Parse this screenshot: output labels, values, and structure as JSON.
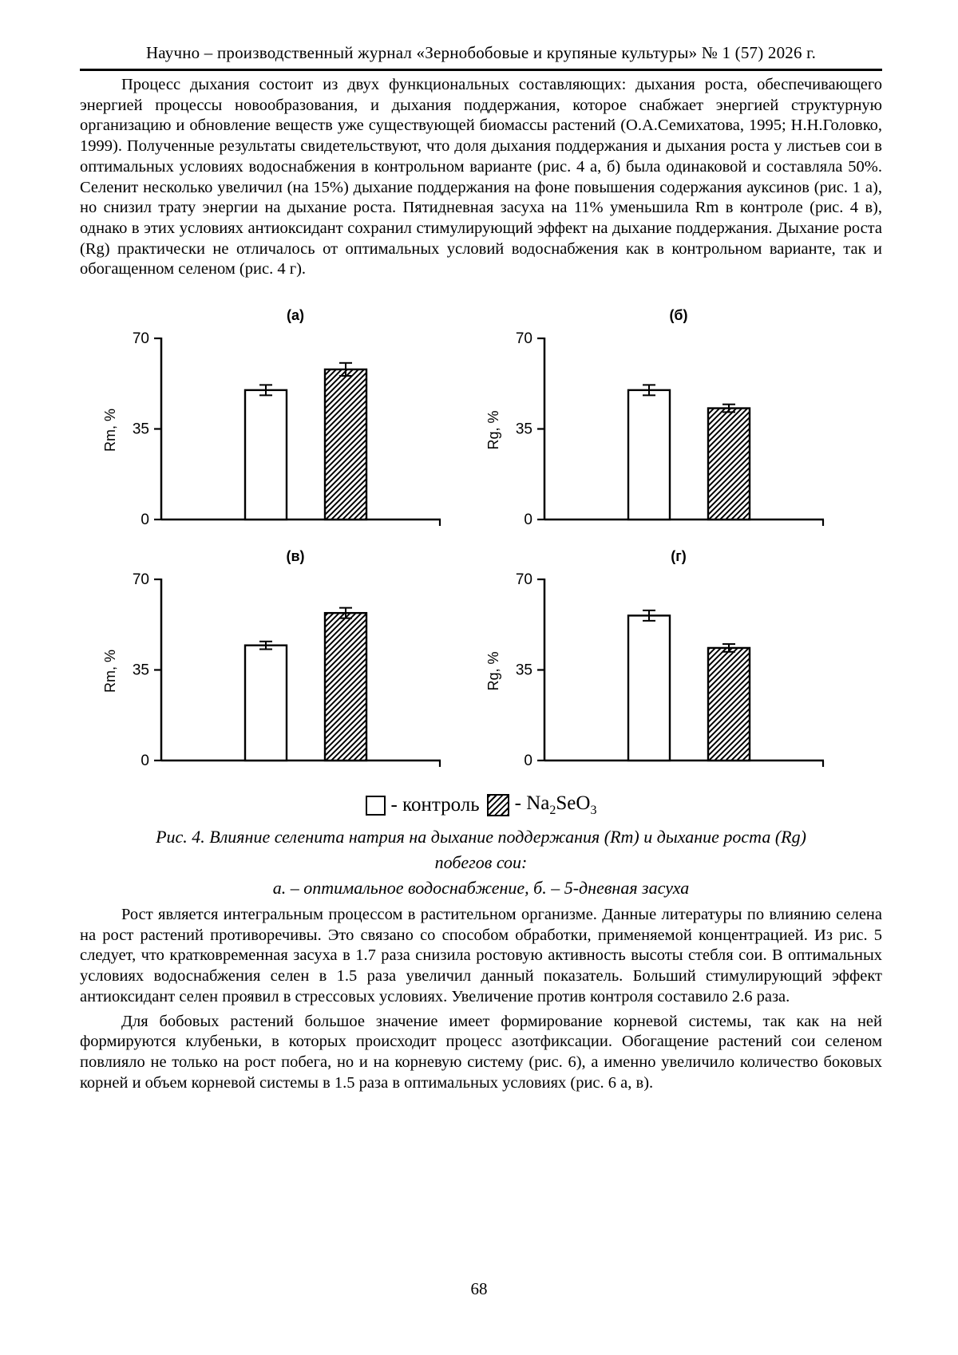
{
  "header": {
    "journal_line": "Научно – производственный журнал «Зернобобовые и крупяные культуры» № 1 (57) 2026 г."
  },
  "paragraphs": {
    "p1": "Процесс дыхания состоит из двух функциональных составляющих: дыхания роста, обеспечивающего энергией процессы новообразования, и дыхания поддержания, которое снабжает энергией структурную организацию и обновление веществ уже существующей биомассы растений (О.А.Семихатова, 1995; Н.Н.Головко, 1999). Полученные результаты свидетельствуют, что доля дыхания поддержания и дыхания роста у листьев сои в оптимальных условиях водоснабжения в контрольном варианте (рис. 4 а, б) была одинаковой и составляла 50%. Селенит несколько увеличил (на 15%) дыхание поддержания на фоне повышения содержания ауксинов (рис. 1 а), но снизил трату энергии на дыхание роста. Пятидневная засуха на 11% уменьшила Rm в контроле (рис. 4 в), однако в этих условиях антиоксидант сохранил стимулирующий эффект на дыхание поддержания. Дыхание роста (Rg) практически не отличалось от оптимальных условий водоснабжения как в контрольном варианте, так и обогащенном селеном (рис. 4 г).",
    "p2": "Рост является интегральным процессом в растительном организме. Данные литературы по влиянию селена на рост растений противоречивы. Это связано со способом обработки, применяемой концентрацией. Из рис. 5 следует, что кратковременная засуха в 1.7 раза снизила ростовую активность высоты стебля сои. В оптимальных условиях водоснабжения селен в 1.5 раза увеличил данный показатель. Больший стимулирующий эффект антиоксидант селен проявил в стрессовых условиях. Увеличение против контроля составило 2.6 раза.",
    "p3": "Для бобовых растений большое значение имеет формирование корневой системы, так как на ней формируются клубеньки, в которых происходит процесс азотфиксации. Обогащение растений сои селеном повлияло не только на рост побега, но и на корневую систему (рис. 6), а именно увеличило количество боковых корней и объем корневой системы в 1.5 раза в оптимальных условиях (рис. 6 а, в)."
  },
  "figure": {
    "legend": {
      "control_label": "- контроль",
      "na_prefix": "- Na",
      "na_sub2": "2",
      "na_mid": "SeO",
      "na_sub3": "3"
    },
    "caption_line1": "Рис. 4. Влияние селенита натрия на дыхание поддержания (Rm) и дыхание роста (Rg)",
    "caption_line2": "побегов сои:",
    "caption_line3": "а. – оптимальное водоснабжение, б. – 5-дневная засуха"
  },
  "page_number": "68",
  "chart_data": [
    {
      "type": "bar",
      "panel": "(а)",
      "ylabel": "Rm, %",
      "ylim": [
        0,
        70
      ],
      "yticks": [
        70,
        35,
        0
      ],
      "grid": false,
      "legend_position": "below-figure",
      "categories": [
        "контроль",
        "Na2SeO3"
      ],
      "values": [
        50,
        58
      ],
      "errors": [
        2,
        2.5
      ],
      "fills": [
        "white",
        "hatch"
      ]
    },
    {
      "type": "bar",
      "panel": "(б)",
      "ylabel": "Rg, %",
      "ylim": [
        0,
        70
      ],
      "yticks": [
        70,
        35,
        0
      ],
      "grid": false,
      "legend_position": "below-figure",
      "categories": [
        "контроль",
        "Na2SeO3"
      ],
      "values": [
        50,
        43
      ],
      "errors": [
        2,
        1.5
      ],
      "fills": [
        "white",
        "hatch"
      ]
    },
    {
      "type": "bar",
      "panel": "(в)",
      "ylabel": "Rm, %",
      "ylim": [
        0,
        70
      ],
      "yticks": [
        70,
        35,
        0
      ],
      "grid": false,
      "legend_position": "below-figure",
      "categories": [
        "контроль",
        "Na2SeO3"
      ],
      "values": [
        44.5,
        57
      ],
      "errors": [
        1.5,
        2
      ],
      "fills": [
        "white",
        "hatch"
      ]
    },
    {
      "type": "bar",
      "panel": "(г)",
      "ylabel": "Rg, %",
      "ylim": [
        0,
        70
      ],
      "yticks": [
        70,
        35,
        0
      ],
      "grid": false,
      "legend_position": "below-figure",
      "categories": [
        "контроль",
        "Na2SeO3"
      ],
      "values": [
        56,
        43.5
      ],
      "errors": [
        2,
        1.5
      ],
      "fills": [
        "white",
        "hatch"
      ]
    }
  ]
}
